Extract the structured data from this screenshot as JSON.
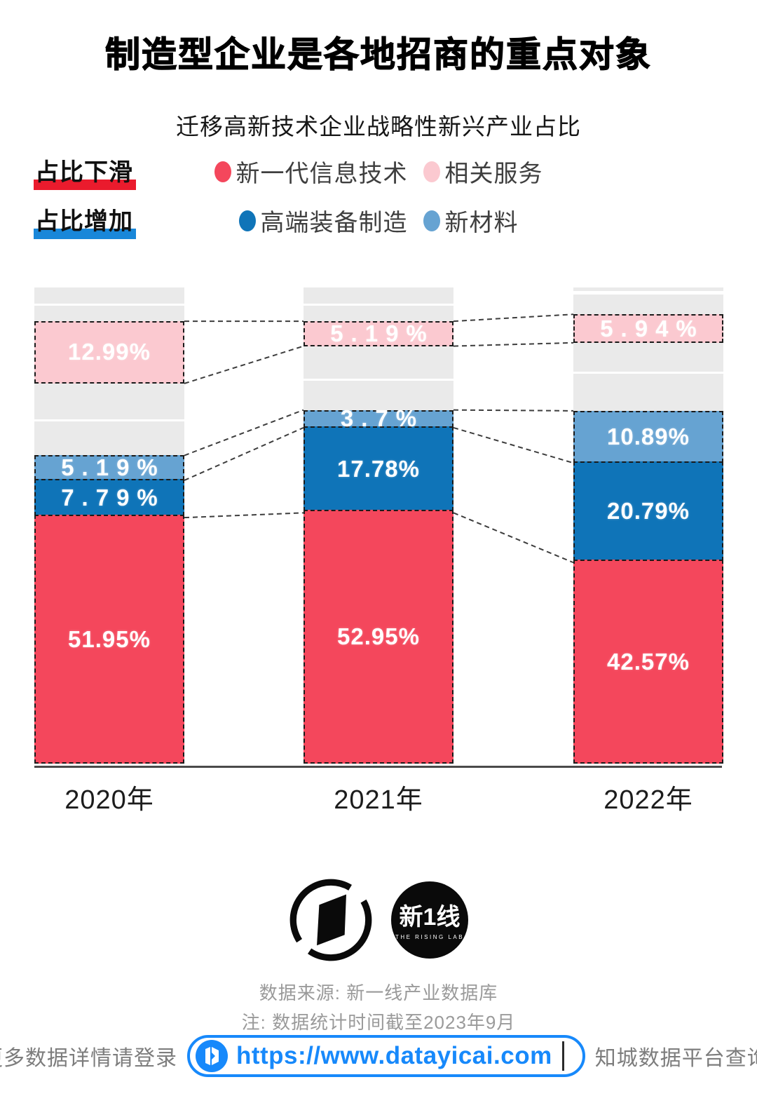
{
  "header": {
    "title": "制造型企业是各地招商的重点对象",
    "subtitle": "迁移高新技术企业战略性新兴产业占比"
  },
  "legend": {
    "rows": [
      {
        "trend_label": "占比下滑",
        "trend_color": "#ea1b2d",
        "items": [
          {
            "label": "新一代信息技术",
            "color": "#f4475c"
          },
          {
            "label": "相关服务",
            "color": "#fbc9d0"
          }
        ]
      },
      {
        "trend_label": "占比增加",
        "trend_color": "#1987d9",
        "items": [
          {
            "label": "高端装备制造",
            "color": "#0f74b8"
          },
          {
            "label": "新材料",
            "color": "#66a3d2"
          }
        ]
      }
    ]
  },
  "chart_data": {
    "type": "bar",
    "variant": "stacked-percent",
    "title": "迁移高新技术企业战略性新兴产业占比",
    "unit": "%",
    "stack_total": 100,
    "grid": false,
    "categories": [
      "2020年",
      "2021年",
      "2022年"
    ],
    "series": [
      {
        "name": "新一代信息技术",
        "key": "it",
        "color": "#f4475c",
        "values": [
          51.95,
          52.95,
          42.57
        ]
      },
      {
        "name": "高端装备制造",
        "key": "equipment",
        "color": "#0f74b8",
        "values": [
          7.79,
          17.78,
          20.79
        ]
      },
      {
        "name": "新材料",
        "key": "materials",
        "color": "#66a3d2",
        "values": [
          5.19,
          3.7,
          10.89
        ]
      },
      {
        "name": "相关服务",
        "key": "services",
        "color": "#fbc9d0",
        "values": [
          12.99,
          5.19,
          5.94
        ]
      }
    ],
    "other_segments_color": "#eaeaea",
    "bars": [
      {
        "category": "2020年",
        "segments": [
          {
            "type": "other",
            "pct": 3.3
          },
          {
            "type": "gap",
            "pct": 0.45
          },
          {
            "type": "other",
            "pct": 3.3
          },
          {
            "type": "services",
            "pct": 12.99,
            "label": "12.99%"
          },
          {
            "type": "other",
            "pct": 7.5
          },
          {
            "type": "gap",
            "pct": 0.45
          },
          {
            "type": "other",
            "pct": 7.08
          },
          {
            "type": "materials",
            "pct": 5.19,
            "label": "5.19%",
            "spaced": true
          },
          {
            "type": "equipment",
            "pct": 7.79,
            "label": "7.79%",
            "spaced": true
          },
          {
            "type": "it",
            "pct": 51.95,
            "label": "51.95%"
          }
        ]
      },
      {
        "category": "2021年",
        "segments": [
          {
            "type": "other",
            "pct": 3.3
          },
          {
            "type": "gap",
            "pct": 0.45
          },
          {
            "type": "other",
            "pct": 3.3
          },
          {
            "type": "services",
            "pct": 5.19,
            "label": "5.19%",
            "spaced": true
          },
          {
            "type": "other",
            "pct": 6.8
          },
          {
            "type": "gap",
            "pct": 0.45
          },
          {
            "type": "other",
            "pct": 6.08
          },
          {
            "type": "materials",
            "pct": 3.7,
            "label": "3.7%",
            "spaced": true
          },
          {
            "type": "equipment",
            "pct": 17.78,
            "label": "17.78%"
          },
          {
            "type": "it",
            "pct": 52.95,
            "label": "52.95%"
          }
        ]
      },
      {
        "category": "2022年",
        "segments": [
          {
            "type": "other",
            "pct": 0.75
          },
          {
            "type": "gap",
            "pct": 0.65
          },
          {
            "type": "other",
            "pct": 4.2
          },
          {
            "type": "services",
            "pct": 5.94,
            "label": "5.94%",
            "spaced": true
          },
          {
            "type": "other",
            "pct": 6.0
          },
          {
            "type": "gap",
            "pct": 0.45
          },
          {
            "type": "other",
            "pct": 7.76
          },
          {
            "type": "materials",
            "pct": 10.89,
            "label": "10.89%"
          },
          {
            "type": "equipment",
            "pct": 20.79,
            "label": "20.79%"
          },
          {
            "type": "it",
            "pct": 42.57,
            "label": "42.57%"
          }
        ]
      }
    ]
  },
  "footer": {
    "logo_brand_text": "新1线",
    "logo_brand_sub": "THE RISING LAB",
    "source_line1": "数据来源: 新一线产业数据库",
    "source_line2": "注: 数据统计时间截至2023年9月",
    "cta_left": "更多数据详情请登录",
    "url": "https://www.datayicai.com",
    "cta_right": "知城数据平台查询!",
    "url_color": "#1789fb"
  }
}
